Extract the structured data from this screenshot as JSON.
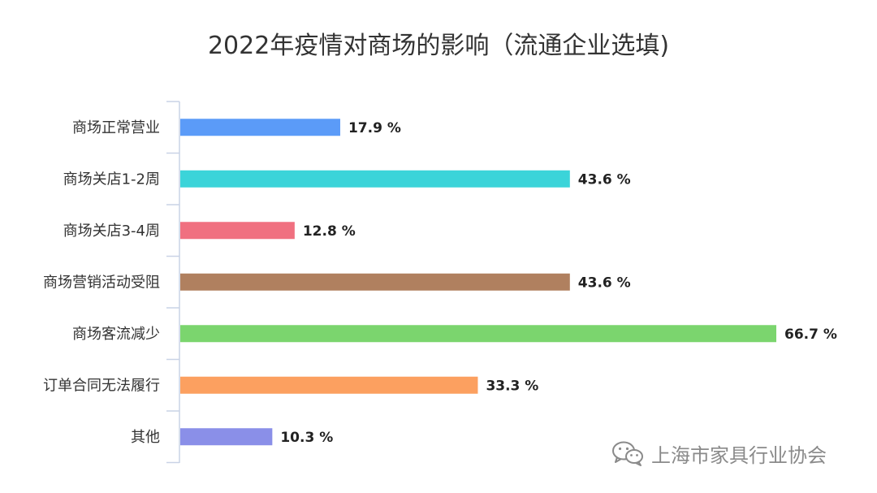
{
  "chart_data": {
    "type": "bar",
    "orientation": "horizontal",
    "title": "2022年疫情对商场的影响（流通企业选填)",
    "categories": [
      "商场正常营业",
      "商场关店1-2周",
      "商场关店3-4周",
      "商场营销活动受阻",
      "商场客流减少",
      "订单合同无法履行",
      "其他"
    ],
    "values": [
      17.9,
      43.6,
      12.8,
      43.6,
      66.7,
      33.3,
      10.3
    ],
    "value_labels": [
      "17.9 %",
      "43.6 %",
      "12.8 %",
      "43.6 %",
      "66.7 %",
      "33.3 %",
      "10.3 %"
    ],
    "colors": [
      "#5B9BF8",
      "#3BD4D9",
      "#F07080",
      "#B0805F",
      "#7BD56E",
      "#FCA060",
      "#8A8FE8"
    ],
    "xlabel": "",
    "ylabel": "",
    "grid": false,
    "legend": "none"
  },
  "watermark": {
    "icon": "wechat-icon",
    "text": "上海市家具行业协会"
  }
}
